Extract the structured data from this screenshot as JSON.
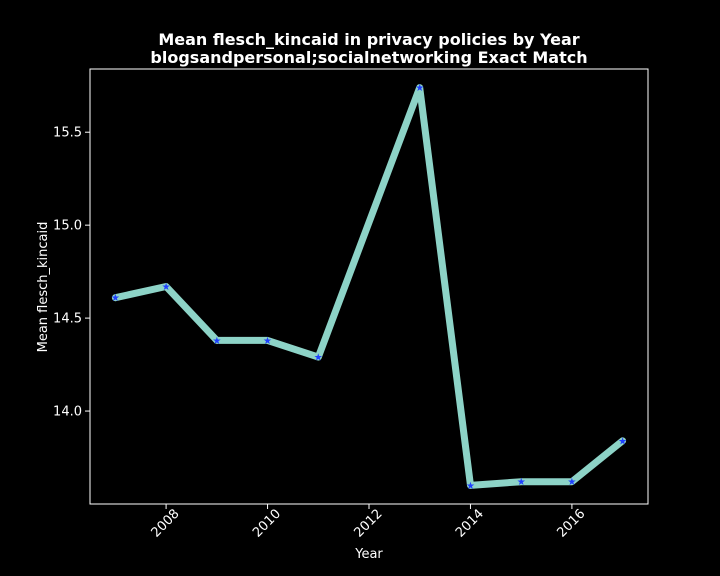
{
  "chart_data": {
    "type": "line",
    "title": "Mean flesch_kincaid in privacy policies by Year",
    "subtitle": "blogsandpersonal;socialnetworking Exact Match",
    "xlabel": "Year",
    "ylabel": "Mean flesch_kincaid",
    "x": [
      2007,
      2008,
      2009,
      2010,
      2011,
      2013,
      2014,
      2015,
      2016,
      2017
    ],
    "values": [
      14.61,
      14.67,
      14.38,
      14.38,
      14.29,
      15.74,
      13.6,
      13.62,
      13.62,
      13.84
    ],
    "xlim": [
      2006.5,
      2017.5
    ],
    "ylim": [
      13.5,
      15.84
    ],
    "x_ticks": [
      2008,
      2010,
      2012,
      2014,
      2016
    ],
    "x_tick_labels": [
      "2008",
      "2010",
      "2012",
      "2014",
      "2016"
    ],
    "y_ticks": [
      14.0,
      14.5,
      15.0,
      15.5
    ],
    "y_tick_labels": [
      "14.0",
      "14.5",
      "15.0",
      "15.5"
    ],
    "grid": false,
    "colors": {
      "background": "#000000",
      "line": "#8dd3c7",
      "marker": "#1f3fff",
      "text": "#ffffff",
      "axes": "#ffffff"
    }
  }
}
